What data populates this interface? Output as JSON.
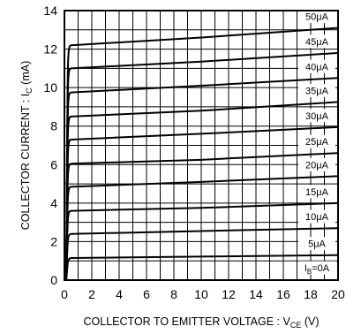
{
  "chart_data": {
    "type": "line",
    "title": "",
    "xlabel": "COLLECTOR TO EMITTER VOLTAGE : V",
    "xlabel_sub": "CE",
    "xlabel_unit": " (V)",
    "ylabel": "COLLECTOR CURRENT : I",
    "ylabel_sub": "C",
    "ylabel_unit": " (mA)",
    "xlim": [
      0,
      20
    ],
    "ylim": [
      0,
      14
    ],
    "x_ticks": [
      "0",
      "2",
      "4",
      "6",
      "8",
      "10",
      "12",
      "14",
      "16",
      "18",
      "20"
    ],
    "y_ticks": [
      "0",
      "2",
      "4",
      "6",
      "8",
      "10",
      "12",
      "14"
    ],
    "grid": true,
    "x_knee": 0.5,
    "series": [
      {
        "name": "I",
        "name_sub": "B",
        "name_suffix": "=0A",
        "values": [
          0.0,
          0.0,
          0.0
        ]
      },
      {
        "name": "5μA",
        "values": [
          1.15,
          1.22,
          1.3
        ]
      },
      {
        "name": "10μA",
        "values": [
          2.4,
          2.55,
          2.7
        ]
      },
      {
        "name": "15μA",
        "values": [
          3.6,
          3.75,
          4.0
        ]
      },
      {
        "name": "20μA",
        "values": [
          4.85,
          5.1,
          5.4
        ]
      },
      {
        "name": "25μA",
        "values": [
          6.05,
          6.25,
          6.6
        ]
      },
      {
        "name": "30μA",
        "values": [
          7.3,
          7.6,
          7.95
        ]
      },
      {
        "name": "35μA",
        "values": [
          8.5,
          8.8,
          9.25
        ]
      },
      {
        "name": "40μA",
        "values": [
          9.75,
          10.1,
          10.5
        ]
      },
      {
        "name": "45μA",
        "values": [
          11.0,
          11.35,
          11.8
        ]
      },
      {
        "name": "50μA",
        "values": [
          12.2,
          12.6,
          13.1
        ]
      }
    ],
    "x": [
      0.5,
      10,
      20
    ]
  }
}
